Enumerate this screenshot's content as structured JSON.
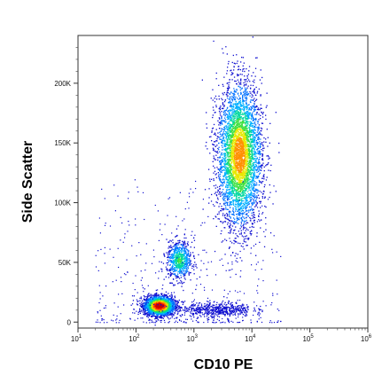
{
  "chart_data": {
    "type": "scatter",
    "subtype": "flow-cytometry-density-dot-plot",
    "title": "",
    "xlabel": "CD10 PE",
    "ylabel": "Side Scatter",
    "x_scale": "log",
    "xlim": [
      10,
      1000000
    ],
    "ylim": [
      -5000,
      240000
    ],
    "x_ticks": [
      {
        "value": 10,
        "base": "10",
        "exp": "1"
      },
      {
        "value": 100,
        "base": "10",
        "exp": "2"
      },
      {
        "value": 1000,
        "base": "10",
        "exp": "3"
      },
      {
        "value": 10000,
        "base": "10",
        "exp": "4"
      },
      {
        "value": 100000,
        "base": "10",
        "exp": "5"
      },
      {
        "value": 1000000,
        "base": "10",
        "exp": "6"
      }
    ],
    "y_ticks": [
      {
        "value": 0,
        "label": "0"
      },
      {
        "value": 50000,
        "label": "50K"
      },
      {
        "value": 100000,
        "label": "100K"
      },
      {
        "value": 150000,
        "label": "150K"
      },
      {
        "value": 200000,
        "label": "200K"
      }
    ],
    "grid": false,
    "legend": "none",
    "colormap": [
      "#1010d0",
      "#0070ff",
      "#00b0ff",
      "#00d8a0",
      "#40e040",
      "#e8e800",
      "#ff9000",
      "#ff2000",
      "#cc0000"
    ],
    "populations": [
      {
        "center_cd10": 250,
        "center_ssc": 14000,
        "spread_log_x": 0.13,
        "spread_y": 4000,
        "density": "very high"
      },
      {
        "center_cd10": 550,
        "center_ssc": 52000,
        "spread_log_x": 0.11,
        "spread_y": 8000,
        "density": "medium"
      },
      {
        "center_cd10": 6000,
        "center_ssc": 140000,
        "spread_log_x": 0.19,
        "spread_y": 30000,
        "density": "high"
      },
      {
        "center_cd10": 2500,
        "center_ssc": 11000,
        "spread_log_x": 0.3,
        "spread_y": 3000,
        "density": "low"
      }
    ]
  }
}
